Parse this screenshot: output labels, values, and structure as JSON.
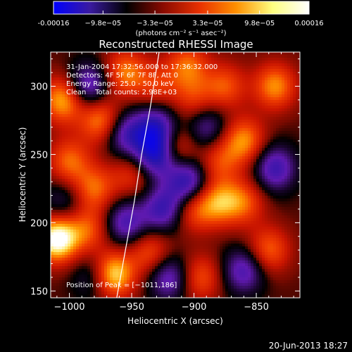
{
  "colorbar": {
    "ticks": [
      "-0.00016",
      "−9.8e−05",
      "−3.3e−05",
      "3.3e−05",
      "9.8e−05",
      "0.00016"
    ],
    "tick_values": [
      -0.00016,
      -9.8e-05,
      -3.3e-05,
      3.3e-05,
      9.8e-05,
      0.00016
    ],
    "range": [
      -0.00016,
      0.00016
    ],
    "unit_label": "(photons cm⁻² s⁻¹ asec⁻²)",
    "colors": [
      "#0000ff",
      "#3a1aa0",
      "#000000",
      "#8a0a00",
      "#e83000",
      "#ff9000",
      "#ffff80",
      "#ffffff"
    ]
  },
  "chart_data": {
    "type": "heatmap",
    "title": "Reconstructed RHESSI Image",
    "xlabel": "Heliocentric X (arcsec)",
    "ylabel": "Heliocentric Y (arcsec)",
    "xlim": [
      -1015,
      -815
    ],
    "ylim": [
      145,
      325
    ],
    "x_ticks": [
      -1000,
      -950,
      -900,
      -850
    ],
    "x_tick_labels": [
      "−1000",
      "−950",
      "−900",
      "−850"
    ],
    "y_ticks": [
      150,
      200,
      250,
      300
    ],
    "y_tick_labels": [
      "150",
      "200",
      "250",
      "300"
    ],
    "annotations": [
      "31-Jan-2004 17:32:56.000 to 17:36:32.000",
      "Detectors: 4F 5F 6F 7F 8F, Att 0",
      "Energy Range: 25.0 - 50.0 keV",
      "Clean    Total counts: 2.98E+03"
    ],
    "peak_label": "Position of Peak = [−1011,186]",
    "peak": [
      -1011,
      186
    ],
    "limb_points": [
      [
        -962,
        145
      ],
      [
        -955,
        180
      ],
      [
        -948,
        215
      ],
      [
        -942,
        250
      ],
      [
        -935,
        285
      ],
      [
        -928,
        325
      ]
    ],
    "blobs": [
      {
        "x": -1010,
        "y": 188,
        "v": 1.0
      },
      {
        "x": -965,
        "y": 162,
        "v": 0.85
      },
      {
        "x": -1005,
        "y": 290,
        "v": 0.7
      },
      {
        "x": -975,
        "y": 275,
        "v": 0.6
      },
      {
        "x": -955,
        "y": 310,
        "v": 0.55
      },
      {
        "x": -980,
        "y": 225,
        "v": 0.5
      },
      {
        "x": -1000,
        "y": 245,
        "v": 0.5
      },
      {
        "x": -950,
        "y": 235,
        "v": 0.35
      },
      {
        "x": -985,
        "y": 195,
        "v": 0.45
      },
      {
        "x": -935,
        "y": 178,
        "v": 0.45
      },
      {
        "x": -915,
        "y": 255,
        "v": 0.5
      },
      {
        "x": -900,
        "y": 210,
        "v": 0.45
      },
      {
        "x": -880,
        "y": 215,
        "v": 0.55
      },
      {
        "x": -860,
        "y": 260,
        "v": 0.6
      },
      {
        "x": -835,
        "y": 300,
        "v": 0.6
      },
      {
        "x": -875,
        "y": 300,
        "v": 0.45
      },
      {
        "x": -900,
        "y": 290,
        "v": 0.35
      },
      {
        "x": -860,
        "y": 215,
        "v": 0.45
      },
      {
        "x": -840,
        "y": 180,
        "v": 0.5
      },
      {
        "x": -895,
        "y": 160,
        "v": 0.45
      },
      {
        "x": -905,
        "y": 315,
        "v": 0.5
      },
      {
        "x": -930,
        "y": 300,
        "v": 0.35
      },
      {
        "x": -880,
        "y": 245,
        "v": 0.4
      },
      {
        "x": -955,
        "y": 200,
        "v": -0.55
      },
      {
        "x": -985,
        "y": 300,
        "v": -0.6
      },
      {
        "x": -930,
        "y": 250,
        "v": -0.85
      },
      {
        "x": -955,
        "y": 265,
        "v": -0.55
      },
      {
        "x": -905,
        "y": 230,
        "v": -0.7
      },
      {
        "x": -925,
        "y": 210,
        "v": -0.6
      },
      {
        "x": -930,
        "y": 270,
        "v": -0.65
      },
      {
        "x": -890,
        "y": 270,
        "v": -0.45
      },
      {
        "x": -860,
        "y": 165,
        "v": -0.55
      },
      {
        "x": -835,
        "y": 240,
        "v": -0.6
      },
      {
        "x": -1005,
        "y": 215,
        "v": -0.3
      },
      {
        "x": -980,
        "y": 160,
        "v": -0.35
      },
      {
        "x": -920,
        "y": 160,
        "v": -0.55
      }
    ]
  },
  "footer_date": "20-Jun-2013 18:27"
}
